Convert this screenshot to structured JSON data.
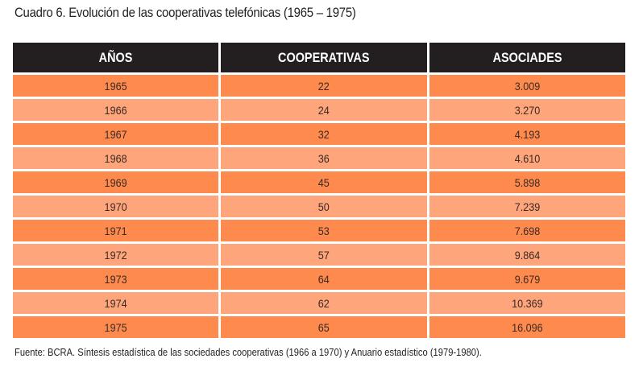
{
  "title": "Cuadro 6. Evolución de las cooperativas telefónicas (1965 – 1975)",
  "headers": [
    "AÑOS",
    "COOPERATIVAS",
    "ASOCIADES"
  ],
  "rows": [
    [
      "1965",
      "22",
      "3.009"
    ],
    [
      "1966",
      "24",
      "3.270"
    ],
    [
      "1967",
      "32",
      "4.193"
    ],
    [
      "1968",
      "36",
      "4.610"
    ],
    [
      "1969",
      "45",
      "5.898"
    ],
    [
      "1970",
      "50",
      "7.239"
    ],
    [
      "1971",
      "53",
      "7.698"
    ],
    [
      "1972",
      "57",
      "9.864"
    ],
    [
      "1973",
      "64",
      "9.679"
    ],
    [
      "1974",
      "62",
      "10.369"
    ],
    [
      "1975",
      "65",
      "16.096"
    ]
  ],
  "source": "Fuente: BCRA. Síntesis estadística de las sociedades cooperativas (1966 a 1970) y Anuario estadístico (1979-1980).",
  "colors": {
    "header_bg": "#231f20",
    "row_dark": "#fe8a4e",
    "row_light": "#fea57c"
  }
}
